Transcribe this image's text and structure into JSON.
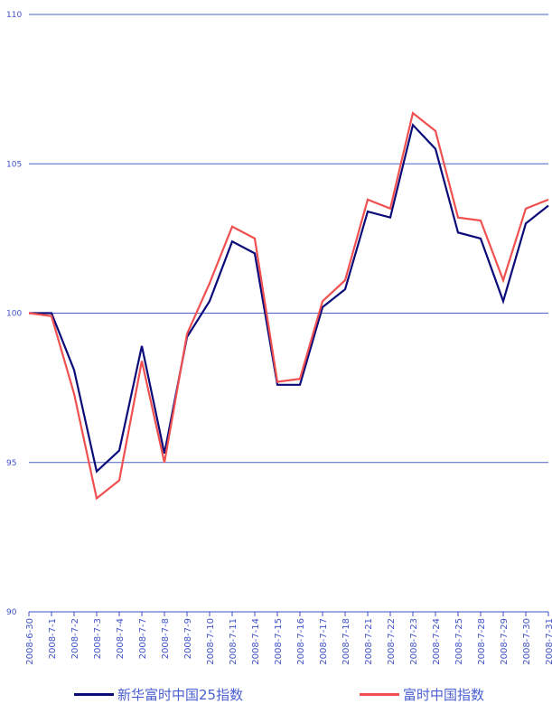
{
  "chart_data": {
    "type": "line",
    "title": "",
    "xlabel": "",
    "ylabel": "",
    "ylim": [
      90,
      110
    ],
    "yticks": [
      90,
      95,
      100,
      105,
      110
    ],
    "grid": true,
    "legend_position": "bottom",
    "categories": [
      "2008-6-30",
      "2008-7-1",
      "2008-7-2",
      "2008-7-3",
      "2008-7-4",
      "2008-7-7",
      "2008-7-8",
      "2008-7-9",
      "2008-7-10",
      "2008-7-11",
      "2008-7-14",
      "2008-7-15",
      "2008-7-16",
      "2008-7-17",
      "2008-7-18",
      "2008-7-21",
      "2008-7-22",
      "2008-7-23",
      "2008-7-24",
      "2008-7-25",
      "2008-7-28",
      "2008-7-29",
      "2008-7-30",
      "2008-7-31"
    ],
    "series": [
      {
        "name": "新华富时中国25指数",
        "color": "#0a0a78",
        "values": [
          100.0,
          100.0,
          98.1,
          94.7,
          95.4,
          98.9,
          95.3,
          99.2,
          100.4,
          102.4,
          102.0,
          97.6,
          97.6,
          100.2,
          100.8,
          103.4,
          103.2,
          106.3,
          105.5,
          102.7,
          102.5,
          100.4,
          103.0,
          103.6
        ]
      },
      {
        "name": "富时中国指数",
        "color": "#f05050",
        "values": [
          100.0,
          99.9,
          97.3,
          93.8,
          94.4,
          98.4,
          95.0,
          99.3,
          101.0,
          102.9,
          102.5,
          97.7,
          97.8,
          100.4,
          101.1,
          103.8,
          103.5,
          106.7,
          106.1,
          103.2,
          103.1,
          101.1,
          103.5,
          103.8
        ]
      }
    ]
  },
  "colors": {
    "grid": "#4a62c8",
    "axis": "#3f51c8",
    "text": "#4a5fd0"
  }
}
